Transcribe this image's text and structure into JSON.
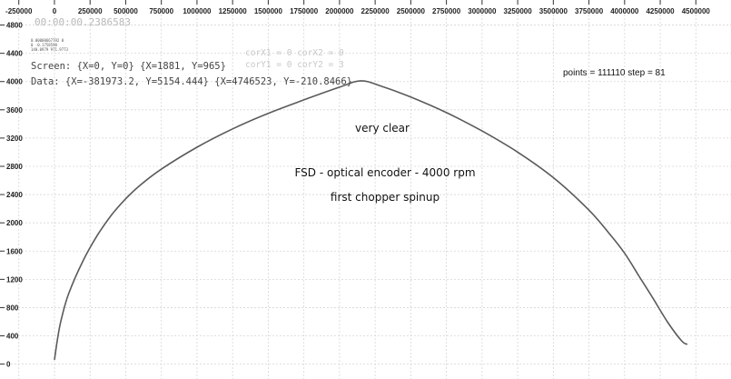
{
  "overlay": {
    "time": "00:00:00.2386583",
    "tiny_lines": [
      "0.00000667792 0",
      "0 -0.1758598",
      "140.0979 971.9773"
    ],
    "screen": "Screen: {X=0, Y=0} {X=1881, Y=965}",
    "data_range": "Data: {X=-381973.2, Y=5154.444} {X=4746523, Y=-210.8466}",
    "cor_x": "corX1 = 0  corX2 = 0",
    "cor_y": "corY1 = 0  corY2 = 3",
    "points": "points = 111110 step = 81"
  },
  "annotations": {
    "a1": "very clear",
    "a2": "FSD - optical encoder - 4000 rpm",
    "a3": "first chopper spinup"
  },
  "chart_data": {
    "type": "line",
    "title": "",
    "xlabel": "",
    "ylabel": "",
    "xlim": [
      -381973.2,
      4746523
    ],
    "ylim": [
      -210.8466,
      5154.444
    ],
    "x_ticks": [
      "-250000",
      "0",
      "250000",
      "500000",
      "750000",
      "1000000",
      "1250000",
      "1500000",
      "1750000",
      "2000000",
      "2250000",
      "2500000",
      "2750000",
      "3000000",
      "3250000",
      "3500000",
      "3750000",
      "4000000",
      "4250000",
      "4500000"
    ],
    "x_tick_values": [
      -250000,
      0,
      250000,
      500000,
      750000,
      1000000,
      1250000,
      1500000,
      1750000,
      2000000,
      2250000,
      2500000,
      2750000,
      3000000,
      3250000,
      3500000,
      3750000,
      4000000,
      4250000,
      4500000
    ],
    "y_ticks": [
      "0",
      "400",
      "800",
      "1200",
      "1600",
      "2000",
      "2400",
      "2800",
      "3200",
      "3600",
      "4000",
      "4400",
      "4800"
    ],
    "y_tick_values": [
      0,
      400,
      800,
      1200,
      1600,
      2000,
      2400,
      2800,
      3200,
      3600,
      4000,
      4400,
      4800
    ],
    "grid": true,
    "series": [
      {
        "color": "#5a5a5a",
        "x": [
          0,
          25000,
          50000,
          100000,
          200000,
          300000,
          400000,
          500000,
          600000,
          750000,
          1000000,
          1250000,
          1500000,
          1750000,
          2000000,
          2150000,
          2300000,
          2500000,
          2750000,
          3000000,
          3250000,
          3500000,
          3750000,
          3900000,
          4000000,
          4100000,
          4200000,
          4300000,
          4400000,
          4440000
        ],
        "y": [
          60,
          400,
          650,
          1000,
          1460,
          1820,
          2110,
          2340,
          2530,
          2760,
          3070,
          3330,
          3550,
          3740,
          3920,
          4010,
          3930,
          3780,
          3560,
          3300,
          3000,
          2640,
          2180,
          1830,
          1570,
          1250,
          930,
          600,
          330,
          280
        ]
      }
    ]
  }
}
